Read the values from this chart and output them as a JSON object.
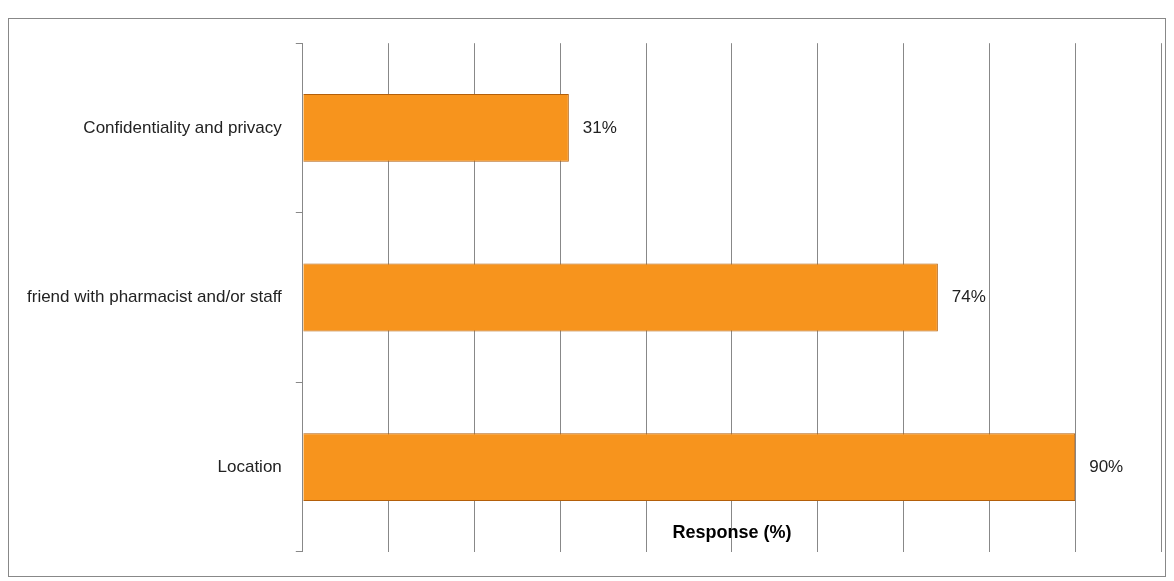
{
  "chart_data": {
    "type": "bar",
    "orientation": "horizontal",
    "xlabel": "Response (%)",
    "categories": [
      "Confidentiality and privacy",
      "friend with pharmacist and/or staff",
      "Location"
    ],
    "values": [
      31,
      74,
      90
    ],
    "value_labels": [
      "31%",
      "74%",
      "90%"
    ],
    "color": "#f7941d",
    "xlim": [
      0,
      100
    ],
    "xticks": [
      {
        "value": 0,
        "label": null
      },
      {
        "value": 10,
        "label": null
      },
      {
        "value": 20,
        "label": null
      },
      {
        "value": 30,
        "label": null
      },
      {
        "value": 40,
        "label": null
      },
      {
        "value": 50,
        "label": null
      },
      {
        "value": 60,
        "label": null
      },
      {
        "value": 70,
        "label": null
      },
      {
        "value": 80,
        "label": null
      },
      {
        "value": 90,
        "label": null
      },
      {
        "value": 100,
        "label": null
      }
    ],
    "tick_labels": "y",
    "grid": "x",
    "legend": false
  }
}
